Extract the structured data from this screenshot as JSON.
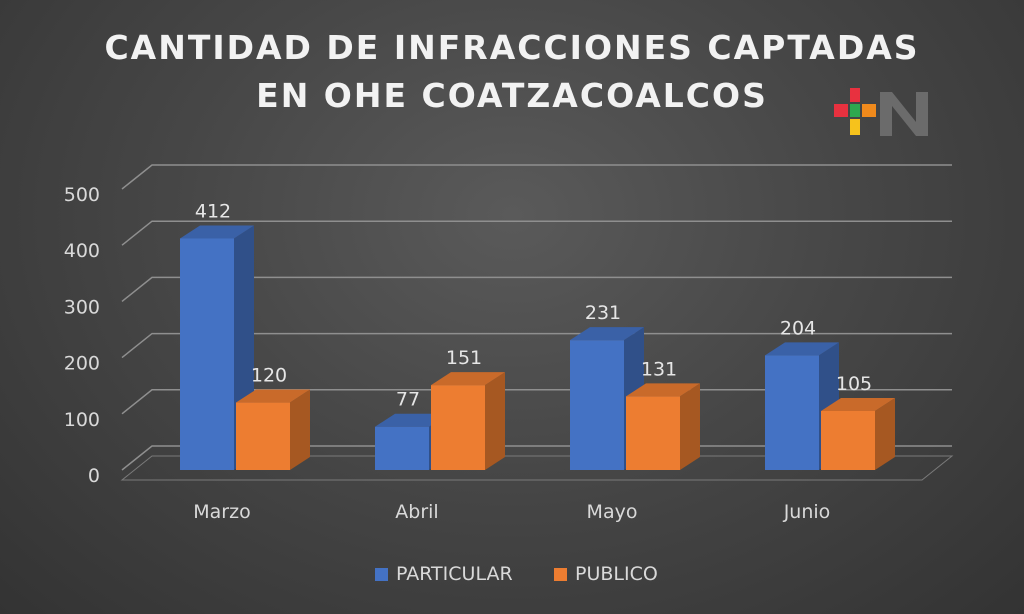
{
  "chart_data": {
    "type": "bar",
    "title_line1": "CANTIDAD DE INFRACCIONES CAPTADAS",
    "title_line2": "EN OHE COATZACOALCOS",
    "categories": [
      "Marzo",
      "Abril",
      "Mayo",
      "Junio"
    ],
    "series": [
      {
        "name": "PARTICULAR",
        "color": "#4472c4",
        "values": [
          412,
          77,
          231,
          204
        ]
      },
      {
        "name": "PUBLICO",
        "color": "#ed7d31",
        "values": [
          120,
          151,
          131,
          105
        ]
      }
    ],
    "ylim": [
      0,
      500
    ],
    "yticks": [
      0,
      100,
      200,
      300,
      400,
      500
    ],
    "grid": true,
    "legend": "bottom",
    "style": "3d-clustered-column"
  },
  "watermark": {
    "icon": "plus-n-logo",
    "colors": [
      "#e8313f",
      "#2ea84f",
      "#f6c21c",
      "#f08a1c",
      "#2d8fd6"
    ]
  }
}
